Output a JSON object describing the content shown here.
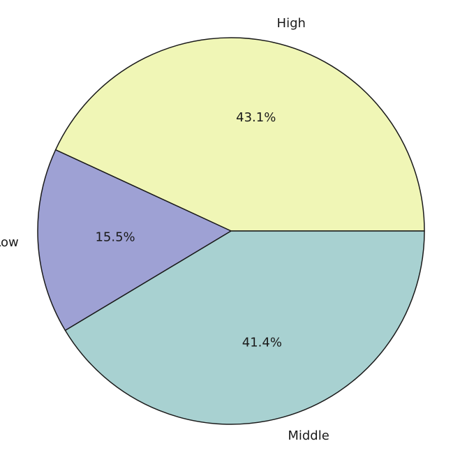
{
  "chart_data": {
    "type": "pie",
    "title": "",
    "categories": [
      "High",
      "Low",
      "Middle"
    ],
    "values": [
      43.1,
      15.5,
      41.4
    ],
    "percent_labels": [
      "43.1%",
      "15.5%",
      "41.4%"
    ],
    "colors": [
      "#f0f6b6",
      "#9ea1d4",
      "#a8d1d1"
    ],
    "start_angle_deg": 0,
    "direction": "counterclockwise",
    "edge_color": "#1a1a1a",
    "legend": "none"
  }
}
